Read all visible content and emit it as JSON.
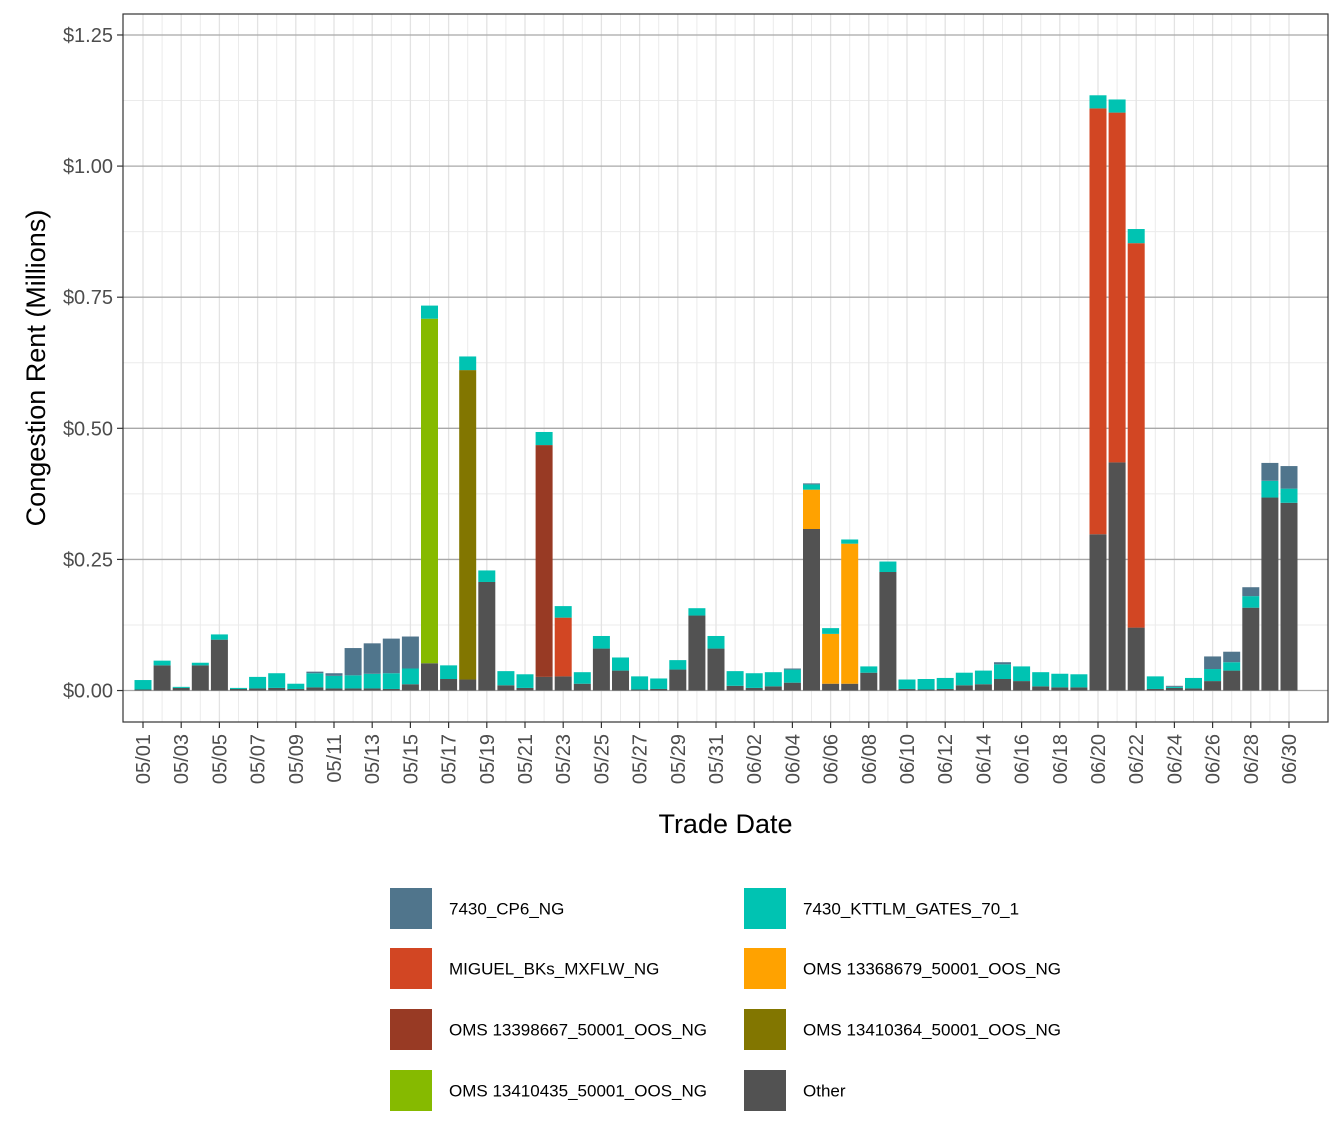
{
  "chart_data": {
    "type": "bar",
    "stacked": true,
    "title": "",
    "xlabel": "Trade Date",
    "ylabel": "Congestion Rent (Millions)",
    "ylim": [
      -0.06,
      1.29
    ],
    "yticks": [
      0,
      0.25,
      0.5,
      0.75,
      1.0,
      1.25
    ],
    "ytick_labels": [
      "$0.00",
      "$0.25",
      "$0.50",
      "$0.75",
      "$1.00",
      "$1.25"
    ],
    "grid": true,
    "legend_position": "bottom",
    "categories": [
      "05/01",
      "05/02",
      "05/03",
      "05/04",
      "05/05",
      "05/06",
      "05/07",
      "05/08",
      "05/09",
      "05/10",
      "05/11",
      "05/12",
      "05/13",
      "05/14",
      "05/15",
      "05/16",
      "05/17",
      "05/18",
      "05/19",
      "05/20",
      "05/21",
      "05/22",
      "05/23",
      "05/24",
      "05/25",
      "05/26",
      "05/27",
      "05/28",
      "05/29",
      "05/30",
      "05/31",
      "06/01",
      "06/02",
      "06/03",
      "06/04",
      "06/05",
      "06/06",
      "06/07",
      "06/08",
      "06/09",
      "06/10",
      "06/11",
      "06/12",
      "06/13",
      "06/14",
      "06/15",
      "06/16",
      "06/17",
      "06/18",
      "06/19",
      "06/20",
      "06/21",
      "06/22",
      "06/23",
      "06/24",
      "06/25",
      "06/26",
      "06/27",
      "06/28",
      "06/29",
      "06/30"
    ],
    "tick_labels": [
      "05/01",
      "05/03",
      "05/05",
      "05/07",
      "05/09",
      "05/11",
      "05/13",
      "05/15",
      "05/17",
      "05/19",
      "05/21",
      "05/23",
      "05/25",
      "05/27",
      "05/29",
      "05/31",
      "06/02",
      "06/04",
      "06/06",
      "06/08",
      "06/10",
      "06/12",
      "06/14",
      "06/16",
      "06/18",
      "06/20",
      "06/22",
      "06/24",
      "06/26",
      "06/28",
      "06/30"
    ],
    "series": [
      {
        "name": "Other",
        "color": "#525252",
        "values": [
          0.002,
          0.048,
          0.005,
          0.048,
          0.097,
          0.003,
          0.004,
          0.005,
          0.003,
          0.006,
          0.004,
          0.004,
          0.004,
          0.003,
          0.012,
          0.052,
          0.022,
          0.021,
          0.207,
          0.01,
          0.005,
          0.026,
          0.027,
          0.013,
          0.08,
          0.038,
          0.002,
          0.003,
          0.04,
          0.143,
          0.08,
          0.009,
          0.005,
          0.008,
          0.015,
          0.308,
          0.013,
          0.013,
          0.034,
          0.226,
          0.003,
          0.002,
          0.003,
          0.01,
          0.012,
          0.022,
          0.018,
          0.008,
          0.006,
          0.006,
          0.298,
          0.435,
          0.12,
          0.003,
          0.005,
          0.004,
          0.018,
          0.038,
          0.158,
          0.368,
          0.358
        ]
      },
      {
        "name": "OMS 13410435_50001_OOS_NG",
        "color": "#86BA00",
        "values": [
          0,
          0,
          0,
          0,
          0,
          0,
          0,
          0,
          0,
          0,
          0,
          0,
          0,
          0,
          0,
          0.657,
          0,
          0,
          0,
          0,
          0,
          0,
          0,
          0,
          0,
          0,
          0,
          0,
          0,
          0,
          0,
          0,
          0,
          0,
          0,
          0,
          0,
          0,
          0,
          0,
          0,
          0,
          0,
          0,
          0,
          0,
          0,
          0,
          0,
          0,
          0,
          0,
          0,
          0,
          0,
          0,
          0,
          0,
          0,
          0,
          0
        ]
      },
      {
        "name": "OMS 13410364_50001_OOS_NG",
        "color": "#827600",
        "values": [
          0,
          0,
          0,
          0,
          0,
          0,
          0,
          0,
          0,
          0,
          0,
          0,
          0,
          0,
          0,
          0,
          0,
          0.59,
          0,
          0,
          0,
          0,
          0,
          0,
          0,
          0,
          0,
          0,
          0,
          0,
          0,
          0,
          0,
          0,
          0,
          0,
          0,
          0,
          0,
          0,
          0,
          0,
          0,
          0,
          0,
          0,
          0,
          0,
          0,
          0,
          0,
          0,
          0,
          0,
          0,
          0,
          0,
          0,
          0,
          0,
          0
        ]
      },
      {
        "name": "OMS 13398667_50001_OOS_NG",
        "color": "#983A24",
        "values": [
          0,
          0,
          0,
          0,
          0,
          0,
          0,
          0,
          0,
          0,
          0,
          0,
          0,
          0,
          0,
          0,
          0,
          0,
          0,
          0,
          0,
          0.442,
          0,
          0,
          0,
          0,
          0,
          0,
          0,
          0,
          0,
          0,
          0,
          0,
          0,
          0,
          0,
          0,
          0,
          0,
          0,
          0,
          0,
          0,
          0,
          0,
          0,
          0,
          0,
          0,
          0,
          0,
          0,
          0,
          0,
          0,
          0,
          0,
          0,
          0,
          0
        ]
      },
      {
        "name": "MIGUEL_BKs_MXFLW_NG",
        "color": "#D24623",
        "values": [
          0,
          0,
          0,
          0,
          0,
          0,
          0,
          0,
          0,
          0,
          0,
          0,
          0,
          0,
          0,
          0,
          0,
          0,
          0,
          0,
          0,
          0,
          0.112,
          0,
          0,
          0,
          0,
          0,
          0,
          0,
          0,
          0,
          0,
          0,
          0,
          0,
          0,
          0,
          0,
          0,
          0,
          0,
          0,
          0,
          0,
          0,
          0,
          0,
          0,
          0,
          0.812,
          0.667,
          0.733,
          0,
          0,
          0,
          0,
          0,
          0,
          0,
          0
        ]
      },
      {
        "name": "OMS 13368679_50001_OOS_NG",
        "color": "#FFA200",
        "values": [
          0,
          0,
          0,
          0,
          0,
          0,
          0,
          0,
          0,
          0,
          0,
          0,
          0,
          0,
          0,
          0,
          0,
          0,
          0,
          0,
          0,
          0,
          0,
          0,
          0,
          0,
          0,
          0,
          0,
          0,
          0,
          0,
          0,
          0,
          0,
          0.075,
          0.095,
          0.267,
          0,
          0,
          0,
          0,
          0,
          0,
          0,
          0,
          0,
          0,
          0,
          0,
          0,
          0,
          0,
          0,
          0,
          0,
          0,
          0,
          0,
          0,
          0
        ]
      },
      {
        "name": "7430_KTTLM_GATES_70_1",
        "color": "#00C3B2",
        "values": [
          0.018,
          0.009,
          0.002,
          0.005,
          0.01,
          0.002,
          0.022,
          0.028,
          0.01,
          0.027,
          0.024,
          0.025,
          0.028,
          0.03,
          0.03,
          0.025,
          0.026,
          0.026,
          0.022,
          0.027,
          0.026,
          0.025,
          0.022,
          0.022,
          0.024,
          0.025,
          0.025,
          0.02,
          0.018,
          0.014,
          0.024,
          0.028,
          0.028,
          0.027,
          0.025,
          0.01,
          0.011,
          0.008,
          0.012,
          0.02,
          0.018,
          0.02,
          0.021,
          0.024,
          0.026,
          0.028,
          0.028,
          0.027,
          0.026,
          0.025,
          0.025,
          0.025,
          0.027,
          0.024,
          0.002,
          0.02,
          0.023,
          0.016,
          0.022,
          0.032,
          0.027
        ]
      },
      {
        "name": "7430_CP6_NG",
        "color": "#50758C",
        "values": [
          0,
          0,
          0,
          0,
          0,
          0,
          0,
          0,
          0,
          0.003,
          0.005,
          0.052,
          0.058,
          0.066,
          0.061,
          0,
          0,
          0,
          0,
          0,
          0,
          0,
          0,
          0,
          0,
          0,
          0,
          0,
          0,
          0,
          0,
          0,
          0,
          0,
          0.002,
          0.002,
          0,
          0,
          0,
          0,
          0,
          0,
          0,
          0,
          0,
          0.004,
          0,
          0,
          0,
          0,
          0,
          0,
          0,
          0,
          0.002,
          0,
          0.024,
          0.02,
          0.017,
          0.034,
          0.043
        ]
      }
    ],
    "legend_order": [
      "7430_CP6_NG",
      "7430_KTTLM_GATES_70_1",
      "MIGUEL_BKs_MXFLW_NG",
      "OMS 13368679_50001_OOS_NG",
      "OMS 13398667_50001_OOS_NG",
      "OMS 13410364_50001_OOS_NG",
      "OMS 13410435_50001_OOS_NG",
      "Other"
    ]
  }
}
